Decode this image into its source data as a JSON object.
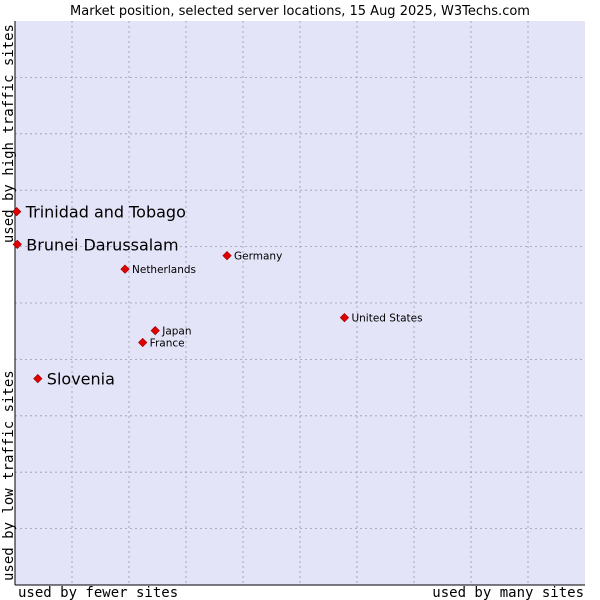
{
  "chart_data": {
    "type": "scatter",
    "title": "Market position, selected server locations, 15 Aug 2025, W3Techs.com",
    "xlabel_low": "used by fewer sites",
    "xlabel_high": "used by many sites",
    "ylabel_low": "used by low traffic sites",
    "ylabel_high": "used by high traffic sites",
    "xlim": [
      0,
      100
    ],
    "ylim": [
      0,
      100
    ],
    "grid": true,
    "colors": {
      "plot_bg": "#e4e4f8",
      "grid": "#9a9ab0",
      "border": "#000000",
      "marker": "#e00000",
      "marker_stroke": "#990000"
    },
    "points": [
      {
        "label": "Trinidad and Tobago",
        "x": 0.3,
        "y": 66.2,
        "size": "large"
      },
      {
        "label": "Brunei Darussalam",
        "x": 0.4,
        "y": 60.4,
        "size": "large"
      },
      {
        "label": "Germany",
        "x": 37.2,
        "y": 58.4,
        "size": "small"
      },
      {
        "label": "Netherlands",
        "x": 19.3,
        "y": 56.0,
        "size": "small"
      },
      {
        "label": "United States",
        "x": 57.8,
        "y": 47.4,
        "size": "small"
      },
      {
        "label": "Japan",
        "x": 24.6,
        "y": 45.1,
        "size": "small"
      },
      {
        "label": "France",
        "x": 22.4,
        "y": 43.0,
        "size": "small"
      },
      {
        "label": "Slovenia",
        "x": 4.0,
        "y": 36.6,
        "size": "large"
      }
    ]
  }
}
